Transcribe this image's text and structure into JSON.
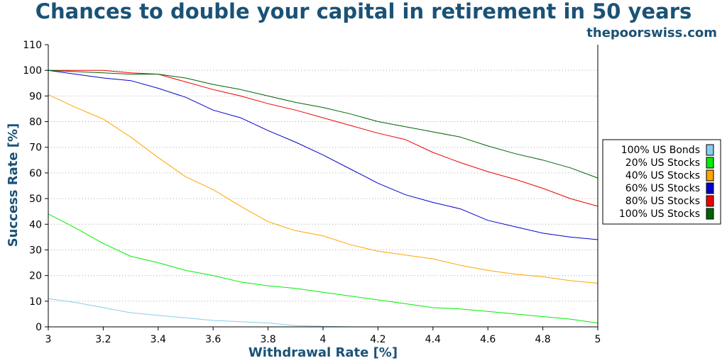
{
  "header": {
    "title": "Chances to double your capital in retirement in 50 years",
    "source": "thepoorswiss.com"
  },
  "chart_data": {
    "type": "line",
    "title": "Chances to double your capital in retirement in 50 years",
    "xlabel": "Withdrawal Rate [%]",
    "ylabel": "Success Rate [%]",
    "xlim": [
      3,
      5
    ],
    "ylim": [
      0,
      110
    ],
    "x_ticks": [
      "3",
      "3.2",
      "3.4",
      "3.6",
      "3.8",
      "4",
      "4.2",
      "4.4",
      "4.6",
      "4.8",
      "5"
    ],
    "y_ticks": [
      "0",
      "10",
      "20",
      "30",
      "40",
      "50",
      "60",
      "70",
      "80",
      "90",
      "100",
      "110"
    ],
    "grid": "horizontal dotted",
    "legend_position": "right",
    "x": [
      3.0,
      3.1,
      3.2,
      3.3,
      3.4,
      3.5,
      3.6,
      3.7,
      3.8,
      3.9,
      4.0,
      4.1,
      4.2,
      4.3,
      4.4,
      4.5,
      4.6,
      4.7,
      4.8,
      4.9,
      5.0
    ],
    "series": [
      {
        "name": "100% US Bonds",
        "color": "#87ceeb",
        "values": [
          11,
          9.5,
          7.5,
          5.5,
          4.5,
          3.5,
          2.5,
          2,
          1.5,
          0.5,
          0.2,
          0,
          0,
          0,
          0,
          0,
          0,
          0,
          0,
          0,
          0
        ]
      },
      {
        "name": "20% US Stocks",
        "color": "#00ee00",
        "values": [
          44,
          38.5,
          32.5,
          27.5,
          25,
          22,
          20,
          17.5,
          16,
          15,
          13.5,
          12,
          10.5,
          9,
          7.5,
          7,
          6,
          5,
          4,
          3,
          1.5
        ]
      },
      {
        "name": "40% US Stocks",
        "color": "#ffa500",
        "values": [
          90.5,
          85.5,
          81,
          74,
          66,
          58.5,
          53.5,
          47,
          41,
          37.5,
          35.5,
          32,
          29.5,
          28,
          26.5,
          24,
          22,
          20.5,
          19.5,
          18,
          17
        ]
      },
      {
        "name": "60% US Stocks",
        "color": "#0000cd",
        "values": [
          100,
          98.5,
          97,
          96,
          93,
          89.5,
          84.5,
          81.5,
          76.5,
          72,
          67,
          61.5,
          56,
          51.5,
          48.5,
          46,
          41.5,
          39,
          36.5,
          35,
          34
        ]
      },
      {
        "name": "80% US Stocks",
        "color": "#ee0000",
        "values": [
          100,
          100,
          100,
          99,
          98.5,
          95.5,
          92.5,
          90,
          87,
          84.5,
          81.5,
          78.5,
          75.5,
          73,
          68,
          64,
          60.5,
          57.5,
          54,
          50,
          47
        ]
      },
      {
        "name": "100% US Stocks",
        "color": "#006400",
        "values": [
          100,
          99.5,
          99,
          98.5,
          98.5,
          97,
          94.5,
          92.5,
          90,
          87.5,
          85.5,
          83,
          80,
          78,
          76,
          74,
          70.5,
          67.5,
          65,
          62,
          58
        ]
      }
    ]
  }
}
